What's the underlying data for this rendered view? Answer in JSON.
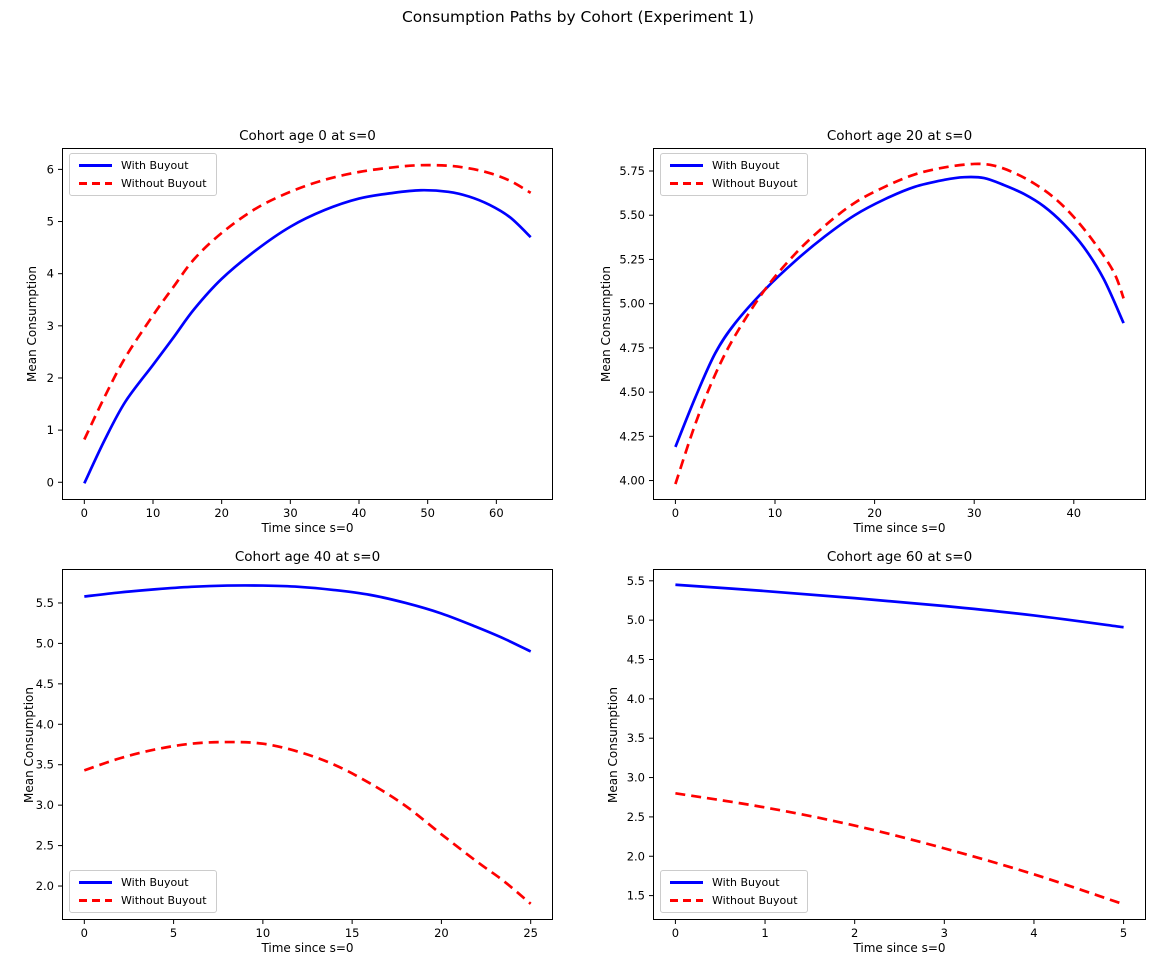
{
  "figure": {
    "suptitle": "Consumption Paths by Cohort (Experiment 1)",
    "background": "#ffffff"
  },
  "legend": {
    "with_buyout_label": "With Buyout",
    "without_buyout_label": "Without Buyout"
  },
  "chart_data": [
    {
      "type": "line",
      "title": "Cohort age 0 at s=0",
      "xlabel": "Time since s=0",
      "ylabel": "Mean Consumption",
      "xlim": [
        -3.25,
        68.25
      ],
      "ylim": [
        -0.34,
        6.41
      ],
      "xticks": [
        0,
        10,
        20,
        30,
        40,
        50,
        60
      ],
      "xtick_labels": [
        "0",
        "10",
        "20",
        "30",
        "40",
        "50",
        "60"
      ],
      "yticks": [
        0,
        1,
        2,
        3,
        4,
        5,
        6
      ],
      "ytick_labels": [
        "0",
        "1",
        "2",
        "3",
        "4",
        "5",
        "6"
      ],
      "grid": false,
      "legend_position": "upper-left",
      "series": [
        {
          "name": "With Buyout",
          "color": "#0000ff",
          "line_style": "solid",
          "points": [
            [
              0,
              -0.02
            ],
            [
              3,
              0.82
            ],
            [
              6,
              1.55
            ],
            [
              10,
              2.25
            ],
            [
              13,
              2.78
            ],
            [
              16,
              3.32
            ],
            [
              20,
              3.9
            ],
            [
              25,
              4.45
            ],
            [
              30,
              4.9
            ],
            [
              35,
              5.22
            ],
            [
              40,
              5.44
            ],
            [
              45,
              5.55
            ],
            [
              49,
              5.6
            ],
            [
              53,
              5.57
            ],
            [
              56,
              5.48
            ],
            [
              59,
              5.32
            ],
            [
              62,
              5.08
            ],
            [
              65,
              4.7
            ]
          ]
        },
        {
          "name": "Without Buyout",
          "color": "#ff0000",
          "line_style": "dashed",
          "points": [
            [
              0,
              0.82
            ],
            [
              3,
              1.65
            ],
            [
              6,
              2.4
            ],
            [
              10,
              3.2
            ],
            [
              13,
              3.75
            ],
            [
              16,
              4.28
            ],
            [
              20,
              4.78
            ],
            [
              25,
              5.25
            ],
            [
              30,
              5.57
            ],
            [
              35,
              5.8
            ],
            [
              40,
              5.95
            ],
            [
              45,
              6.04
            ],
            [
              49,
              6.08
            ],
            [
              53,
              6.07
            ],
            [
              56,
              6.02
            ],
            [
              59,
              5.93
            ],
            [
              62,
              5.78
            ],
            [
              65,
              5.55
            ]
          ]
        }
      ]
    },
    {
      "type": "line",
      "title": "Cohort age 20 at s=0",
      "xlabel": "Time since s=0",
      "ylabel": "Mean Consumption",
      "xlim": [
        -2.25,
        47.25
      ],
      "ylim": [
        3.89,
        5.88
      ],
      "xticks": [
        0,
        10,
        20,
        30,
        40
      ],
      "xtick_labels": [
        "0",
        "10",
        "20",
        "30",
        "40"
      ],
      "yticks": [
        4.0,
        4.25,
        4.5,
        4.75,
        5.0,
        5.25,
        5.5,
        5.75
      ],
      "ytick_labels": [
        "4.00",
        "4.25",
        "4.50",
        "4.75",
        "5.00",
        "5.25",
        "5.50",
        "5.75"
      ],
      "grid": false,
      "legend_position": "upper-left",
      "series": [
        {
          "name": "With Buyout",
          "color": "#0000ff",
          "line_style": "solid",
          "points": [
            [
              0,
              4.19
            ],
            [
              2,
              4.47
            ],
            [
              4,
              4.72
            ],
            [
              6,
              4.89
            ],
            [
              9,
              5.08
            ],
            [
              12,
              5.24
            ],
            [
              15,
              5.38
            ],
            [
              18,
              5.5
            ],
            [
              21,
              5.59
            ],
            [
              24,
              5.66
            ],
            [
              27,
              5.7
            ],
            [
              29,
              5.715
            ],
            [
              31,
              5.71
            ],
            [
              33,
              5.67
            ],
            [
              35,
              5.62
            ],
            [
              37,
              5.55
            ],
            [
              39,
              5.45
            ],
            [
              41,
              5.32
            ],
            [
              43,
              5.14
            ],
            [
              45,
              4.89
            ]
          ]
        },
        {
          "name": "Without Buyout",
          "color": "#ff0000",
          "line_style": "dashed",
          "points": [
            [
              0,
              3.98
            ],
            [
              2,
              4.32
            ],
            [
              4,
              4.6
            ],
            [
              6,
              4.82
            ],
            [
              9,
              5.08
            ],
            [
              12,
              5.28
            ],
            [
              15,
              5.44
            ],
            [
              18,
              5.57
            ],
            [
              21,
              5.66
            ],
            [
              24,
              5.73
            ],
            [
              27,
              5.77
            ],
            [
              30,
              5.79
            ],
            [
              32,
              5.78
            ],
            [
              34,
              5.74
            ],
            [
              36,
              5.68
            ],
            [
              38,
              5.6
            ],
            [
              40,
              5.49
            ],
            [
              42,
              5.35
            ],
            [
              44,
              5.18
            ],
            [
              45,
              5.03
            ]
          ]
        }
      ]
    },
    {
      "type": "line",
      "title": "Cohort age 40 at s=0",
      "xlabel": "Time since s=0",
      "ylabel": "Mean Consumption",
      "xlim": [
        -1.25,
        26.25
      ],
      "ylim": [
        1.58,
        5.92
      ],
      "xticks": [
        0,
        5,
        10,
        15,
        20,
        25
      ],
      "xtick_labels": [
        "0",
        "5",
        "10",
        "15",
        "20",
        "25"
      ],
      "yticks": [
        2.0,
        2.5,
        3.0,
        3.5,
        4.0,
        4.5,
        5.0,
        5.5
      ],
      "ytick_labels": [
        "2.0",
        "2.5",
        "3.0",
        "3.5",
        "4.0",
        "4.5",
        "5.0",
        "5.5"
      ],
      "grid": false,
      "legend_position": "lower-left",
      "series": [
        {
          "name": "With Buyout",
          "color": "#0000ff",
          "line_style": "solid",
          "points": [
            [
              0,
              5.58
            ],
            [
              2,
              5.63
            ],
            [
              4,
              5.67
            ],
            [
              6,
              5.7
            ],
            [
              8,
              5.715
            ],
            [
              10,
              5.715
            ],
            [
              12,
              5.7
            ],
            [
              14,
              5.66
            ],
            [
              16,
              5.6
            ],
            [
              18,
              5.5
            ],
            [
              20,
              5.37
            ],
            [
              22,
              5.2
            ],
            [
              23.5,
              5.06
            ],
            [
              25,
              4.9
            ]
          ]
        },
        {
          "name": "Without Buyout",
          "color": "#ff0000",
          "line_style": "dashed",
          "points": [
            [
              0,
              3.43
            ],
            [
              2,
              3.58
            ],
            [
              4,
              3.69
            ],
            [
              6,
              3.76
            ],
            [
              8,
              3.78
            ],
            [
              10,
              3.76
            ],
            [
              12,
              3.66
            ],
            [
              14,
              3.5
            ],
            [
              16,
              3.27
            ],
            [
              18,
              2.99
            ],
            [
              20,
              2.64
            ],
            [
              22,
              2.3
            ],
            [
              23.5,
              2.06
            ],
            [
              25,
              1.78
            ]
          ]
        }
      ]
    },
    {
      "type": "line",
      "title": "Cohort age 60 at s=0",
      "xlabel": "Time since s=0",
      "ylabel": "Mean Consumption",
      "xlim": [
        -0.25,
        5.25
      ],
      "ylim": [
        1.19,
        5.65
      ],
      "xticks": [
        0,
        1,
        2,
        3,
        4,
        5
      ],
      "xtick_labels": [
        "0",
        "1",
        "2",
        "3",
        "4",
        "5"
      ],
      "yticks": [
        1.5,
        2.0,
        2.5,
        3.0,
        3.5,
        4.0,
        4.5,
        5.0,
        5.5
      ],
      "ytick_labels": [
        "1.5",
        "2.0",
        "2.5",
        "3.0",
        "3.5",
        "4.0",
        "4.5",
        "5.0",
        "5.5"
      ],
      "grid": false,
      "legend_position": "lower-left",
      "series": [
        {
          "name": "With Buyout",
          "color": "#0000ff",
          "line_style": "solid",
          "points": [
            [
              0,
              5.45
            ],
            [
              1,
              5.37
            ],
            [
              2,
              5.28
            ],
            [
              3,
              5.18
            ],
            [
              4,
              5.06
            ],
            [
              5,
              4.91
            ]
          ]
        },
        {
          "name": "Without Buyout",
          "color": "#ff0000",
          "line_style": "dashed",
          "points": [
            [
              0,
              2.8
            ],
            [
              1,
              2.62
            ],
            [
              2,
              2.39
            ],
            [
              3,
              2.1
            ],
            [
              4,
              1.77
            ],
            [
              5,
              1.39
            ]
          ]
        }
      ]
    }
  ]
}
